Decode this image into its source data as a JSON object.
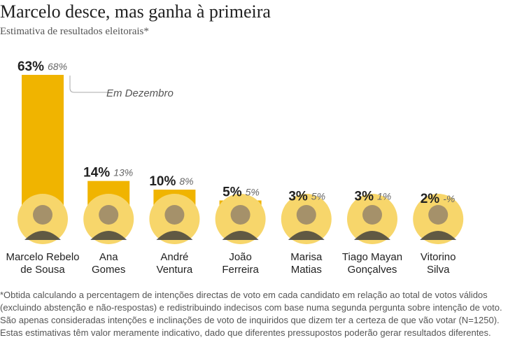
{
  "title": "Marcelo desce, mas ganha à primeira",
  "subtitle": "Estimativa de resultados eleitorais*",
  "annotation": "Em Dezembro",
  "footnote": "*Obtida calculando a percentagem de intenções directas de voto em cada candidato em relação ao total de votos válidos (excluindo abstenção e não-respostas) e redistribuindo indecisos com base numa segunda pergunta sobre intenção de voto. São apenas consideradas intenções e inclinações de voto de inquiridos que dizem ter a certeza de que vão votar (N=1250). Estas estimativas têm valor meramente indicativo, dado que diferentes pressupostos poderão gerar resultados diferentes.",
  "colors": {
    "bar": "#F0B400",
    "circle": "#F7D66B",
    "value_text": "#222222",
    "previous_text": "#666666"
  },
  "chart_data": {
    "type": "bar",
    "title": "Marcelo desce, mas ganha à primeira",
    "subtitle": "Estimativa de resultados eleitorais*",
    "categories": [
      [
        "Marcelo Rebelo",
        "de Sousa"
      ],
      [
        "Ana",
        "Gomes"
      ],
      [
        "André",
        "Ventura"
      ],
      [
        "João",
        "Ferreira"
      ],
      [
        "Marisa",
        "Matias"
      ],
      [
        "Tiago Mayan",
        "Gonçalves"
      ],
      [
        "Vitorino",
        "Silva"
      ]
    ],
    "values": [
      63,
      14,
      10,
      5,
      3,
      3,
      2
    ],
    "value_labels": [
      "63%",
      "14%",
      "10%",
      "5%",
      "3%",
      "3%",
      "2%"
    ],
    "previous_labels": [
      "68%",
      "13%",
      "8%",
      "5%",
      "5%",
      "1%",
      "-%"
    ],
    "previous_values": [
      68,
      13,
      8,
      5,
      5,
      1,
      null
    ],
    "previous_series_label": "Em Dezembro",
    "unit": "%",
    "ylim": [
      0,
      63
    ]
  }
}
